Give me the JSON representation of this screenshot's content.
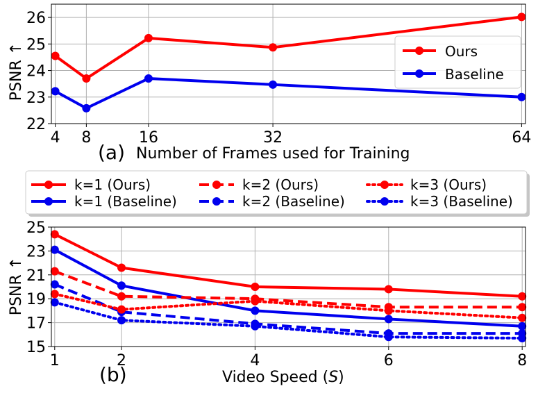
{
  "chart_data": [
    {
      "type": "line",
      "panel_label": "(a)",
      "xlabel": "Number of Frames used for Training",
      "ylabel": "PSNR ↑",
      "x": [
        4,
        8,
        16,
        32,
        64
      ],
      "xticks": [
        4,
        8,
        16,
        32,
        64
      ],
      "yticks": [
        22,
        23,
        24,
        25,
        26
      ],
      "xlim": [
        3.5,
        64.5
      ],
      "ylim": [
        22,
        26.5
      ],
      "grid": true,
      "legend_position": "center-right",
      "series": [
        {
          "name": "Ours",
          "color": "#ff0000",
          "style": "solid",
          "values": [
            24.55,
            23.7,
            25.22,
            24.87,
            26.02
          ]
        },
        {
          "name": "Baseline",
          "color": "#0000ee",
          "style": "solid",
          "values": [
            23.22,
            22.58,
            23.7,
            23.47,
            23.0
          ]
        }
      ]
    },
    {
      "type": "line",
      "panel_label": "(b)",
      "xlabel_prefix": "Video Speed (",
      "xlabel_var": "S",
      "xlabel_suffix": ")",
      "ylabel": "PSNR ↑",
      "x": [
        1,
        2,
        4,
        6,
        8
      ],
      "xticks": [
        1,
        2,
        4,
        6,
        8
      ],
      "yticks": [
        15,
        17,
        19,
        21,
        23,
        25
      ],
      "xlim": [
        0.95,
        8.05
      ],
      "ylim": [
        15,
        25
      ],
      "grid": true,
      "legend_position": "top-outside",
      "series": [
        {
          "name": "k=1 (Ours)",
          "color": "#ff0000",
          "style": "solid",
          "values": [
            24.4,
            21.6,
            20.0,
            19.8,
            19.2
          ]
        },
        {
          "name": "k=1 (Baseline)",
          "color": "#0000ee",
          "style": "solid",
          "values": [
            23.1,
            20.1,
            18.0,
            17.3,
            16.7
          ]
        },
        {
          "name": "k=2 (Ours)",
          "color": "#ff0000",
          "style": "dashed",
          "values": [
            21.3,
            19.2,
            19.0,
            18.3,
            18.3
          ]
        },
        {
          "name": "k=2 (Baseline)",
          "color": "#0000ee",
          "style": "dashed",
          "values": [
            20.2,
            17.9,
            16.9,
            16.1,
            16.1
          ]
        },
        {
          "name": "k=3 (Ours)",
          "color": "#ff0000",
          "style": "dotted",
          "values": [
            19.4,
            18.1,
            18.8,
            18.0,
            17.4
          ]
        },
        {
          "name": "k=3 (Baseline)",
          "color": "#0000ee",
          "style": "dotted",
          "values": [
            18.7,
            17.2,
            16.7,
            15.8,
            15.7
          ]
        }
      ]
    }
  ]
}
